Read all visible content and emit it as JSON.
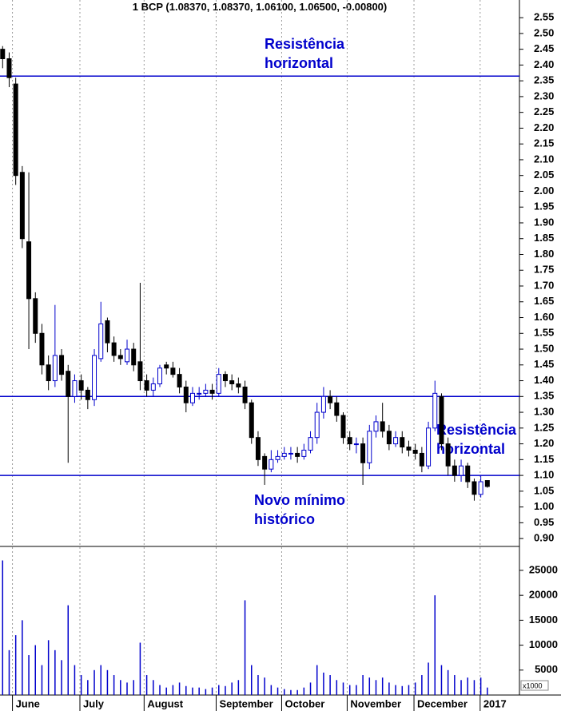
{
  "chart_data": {
    "type": "candlestick",
    "title": "1 BCP (1.08370, 1.08370, 1.06100, 1.06500, -0.00800)",
    "up_color": "#0000cc",
    "down_color": "#000000",
    "volume_color": "#0000cc",
    "hline_color": "#0000cc",
    "xlim": [
      -0.4,
      78.9
    ],
    "xticks": [
      {
        "value": 1.5,
        "label": "June"
      },
      {
        "value": 11.8,
        "label": "July"
      },
      {
        "value": 21.6,
        "label": "August"
      },
      {
        "value": 32.6,
        "label": "September"
      },
      {
        "value": 42.6,
        "label": "October"
      },
      {
        "value": 52.6,
        "label": "November"
      },
      {
        "value": 62.8,
        "label": "December"
      },
      {
        "value": 72.9,
        "label": "2017"
      }
    ],
    "ylim": [
      0.875,
      2.606
    ],
    "yticks": [
      {
        "value": 0.9,
        "label": "0.90"
      },
      0.95,
      {
        "value": 1.0,
        "label": "1.00"
      },
      1.05,
      {
        "value": 1.1,
        "label": "1.10"
      },
      1.15,
      {
        "value": 1.2,
        "label": "1.20"
      },
      1.25,
      {
        "value": 1.3,
        "label": "1.30"
      },
      1.35,
      {
        "value": 1.4,
        "label": "1.40"
      },
      1.45,
      {
        "value": 1.5,
        "label": "1.50"
      },
      1.55,
      {
        "value": 1.6,
        "label": "1.60"
      },
      1.65,
      {
        "value": 1.7,
        "label": "1.70"
      },
      1.75,
      {
        "value": 1.8,
        "label": "1.80"
      },
      1.85,
      {
        "value": 1.9,
        "label": "1.90"
      },
      1.95,
      {
        "value": 2.0,
        "label": "2.00"
      },
      2.05,
      {
        "value": 2.1,
        "label": "2.10"
      },
      2.15,
      {
        "value": 2.2,
        "label": "2.20"
      },
      2.25,
      {
        "value": 2.3,
        "label": "2.30"
      },
      2.35,
      {
        "value": 2.4,
        "label": "2.40"
      },
      2.45,
      {
        "value": 2.5,
        "label": "2.50"
      },
      2.55
    ],
    "y2lim": [
      0,
      29800
    ],
    "y2ticks": [
      5000,
      10000,
      15000,
      20000,
      25000
    ],
    "volume_unit_label": "x1000",
    "hlines": [
      2.365,
      1.35,
      1.1
    ],
    "annotations": [
      [
        "Resistência",
        "horizontal"
      ],
      [
        "Resistência",
        "horizontal"
      ],
      [
        "Novo mínimo",
        "histórico"
      ]
    ],
    "open": [
      2.45,
      2.42,
      2.34,
      2.06,
      1.84,
      1.66,
      1.55,
      1.45,
      1.4,
      1.48,
      1.43,
      1.35,
      1.4,
      1.37,
      1.34,
      1.47,
      1.59,
      1.52,
      1.48,
      1.46,
      1.5,
      1.46,
      1.4,
      1.37,
      1.39,
      1.45,
      1.44,
      1.42,
      1.38,
      1.33,
      1.36,
      1.36,
      1.37,
      1.36,
      1.42,
      1.4,
      1.39,
      1.38,
      1.33,
      1.22,
      1.16,
      1.12,
      1.15,
      1.16,
      1.17,
      1.17,
      1.16,
      1.18,
      1.22,
      1.3,
      1.35,
      1.33,
      1.29,
      1.22,
      1.2,
      1.2,
      1.14,
      1.24,
      1.27,
      1.24,
      1.2,
      1.22,
      1.19,
      1.18,
      1.17,
      1.13,
      1.25,
      1.35,
      1.2,
      1.13,
      1.1,
      1.13,
      1.08,
      1.04,
      1.0837
    ],
    "high": [
      2.46,
      2.44,
      2.36,
      2.08,
      2.06,
      1.68,
      1.58,
      1.48,
      1.64,
      1.5,
      1.45,
      1.42,
      1.42,
      1.38,
      1.5,
      1.65,
      1.6,
      1.54,
      1.5,
      1.53,
      1.52,
      1.71,
      1.42,
      1.41,
      1.45,
      1.46,
      1.46,
      1.44,
      1.4,
      1.38,
      1.38,
      1.39,
      1.39,
      1.44,
      1.43,
      1.42,
      1.41,
      1.4,
      1.34,
      1.24,
      1.17,
      1.18,
      1.18,
      1.19,
      1.19,
      1.19,
      1.2,
      1.24,
      1.33,
      1.38,
      1.37,
      1.35,
      1.3,
      1.24,
      1.22,
      1.22,
      1.26,
      1.29,
      1.33,
      1.26,
      1.24,
      1.24,
      1.21,
      1.2,
      1.19,
      1.27,
      1.4,
      1.36,
      1.22,
      1.15,
      1.15,
      1.14,
      1.09,
      1.1,
      1.0837
    ],
    "low": [
      2.39,
      2.33,
      2.02,
      1.82,
      1.5,
      1.52,
      1.42,
      1.37,
      1.38,
      1.4,
      1.14,
      1.33,
      1.34,
      1.31,
      1.32,
      1.46,
      1.49,
      1.46,
      1.45,
      1.45,
      1.43,
      1.37,
      1.35,
      1.35,
      1.38,
      1.42,
      1.41,
      1.36,
      1.3,
      1.32,
      1.34,
      1.35,
      1.34,
      1.35,
      1.38,
      1.37,
      1.36,
      1.31,
      1.2,
      1.13,
      1.07,
      1.11,
      1.14,
      1.15,
      1.15,
      1.14,
      1.15,
      1.17,
      1.2,
      1.28,
      1.31,
      1.27,
      1.2,
      1.18,
      1.17,
      1.07,
      1.12,
      1.22,
      1.22,
      1.18,
      1.19,
      1.17,
      1.16,
      1.15,
      1.11,
      1.12,
      1.24,
      1.18,
      1.1,
      1.08,
      1.08,
      1.06,
      1.02,
      1.03,
      1.061
    ],
    "close": [
      2.42,
      2.36,
      2.05,
      1.85,
      1.66,
      1.55,
      1.45,
      1.4,
      1.48,
      1.42,
      1.35,
      1.4,
      1.37,
      1.34,
      1.48,
      1.58,
      1.52,
      1.48,
      1.47,
      1.5,
      1.45,
      1.4,
      1.37,
      1.39,
      1.44,
      1.44,
      1.42,
      1.38,
      1.33,
      1.36,
      1.36,
      1.37,
      1.36,
      1.42,
      1.4,
      1.39,
      1.38,
      1.33,
      1.22,
      1.15,
      1.12,
      1.15,
      1.16,
      1.17,
      1.17,
      1.16,
      1.18,
      1.22,
      1.3,
      1.35,
      1.33,
      1.29,
      1.22,
      1.2,
      1.2,
      1.14,
      1.24,
      1.27,
      1.24,
      1.2,
      1.22,
      1.19,
      1.18,
      1.17,
      1.13,
      1.25,
      1.36,
      1.2,
      1.13,
      1.1,
      1.13,
      1.08,
      1.04,
      1.08,
      1.065
    ],
    "volume": [
      27000,
      9000,
      12000,
      15000,
      8000,
      10000,
      6000,
      11000,
      9000,
      7000,
      18000,
      6000,
      4000,
      3000,
      5000,
      6000,
      5000,
      4000,
      3000,
      2500,
      3000,
      10500,
      4000,
      3000,
      2000,
      1500,
      2000,
      2500,
      1800,
      1500,
      1500,
      1200,
      1500,
      2000,
      1800,
      2500,
      3000,
      19000,
      6000,
      4000,
      3500,
      2000,
      1500,
      1200,
      1000,
      1000,
      1500,
      2500,
      6000,
      4500,
      4000,
      3000,
      2500,
      2000,
      2000,
      4000,
      3500,
      3000,
      3500,
      2500,
      2000,
      1800,
      2000,
      2500,
      4000,
      6500,
      20000,
      6000,
      5000,
      4000,
      3000,
      3500,
      3000,
      3500,
      1500
    ]
  }
}
